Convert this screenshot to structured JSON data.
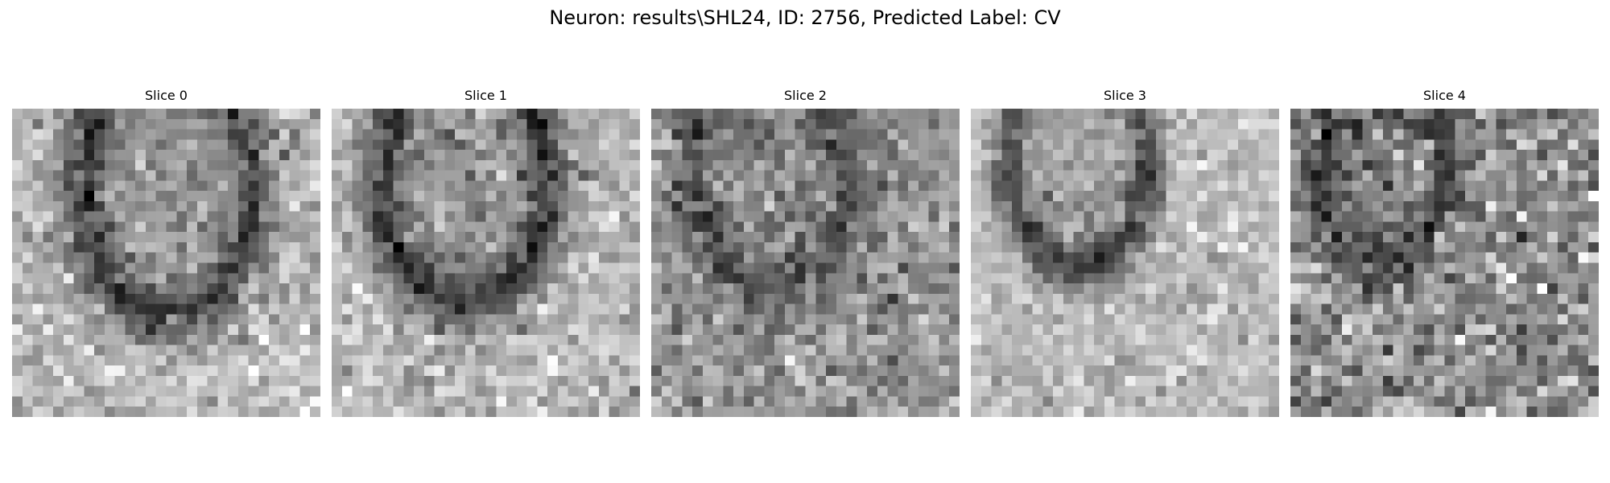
{
  "figure": {
    "title": "Neuron: results\\SHL24, ID: 2756, Predicted Label: CV",
    "colormap": "gray"
  },
  "slices": [
    {
      "title": "Slice 0",
      "grid": 30
    },
    {
      "title": "Slice 1",
      "grid": 30
    },
    {
      "title": "Slice 2",
      "grid": 30
    },
    {
      "title": "Slice 3",
      "grid": 30
    },
    {
      "title": "Slice 4",
      "grid": 30
    }
  ]
}
